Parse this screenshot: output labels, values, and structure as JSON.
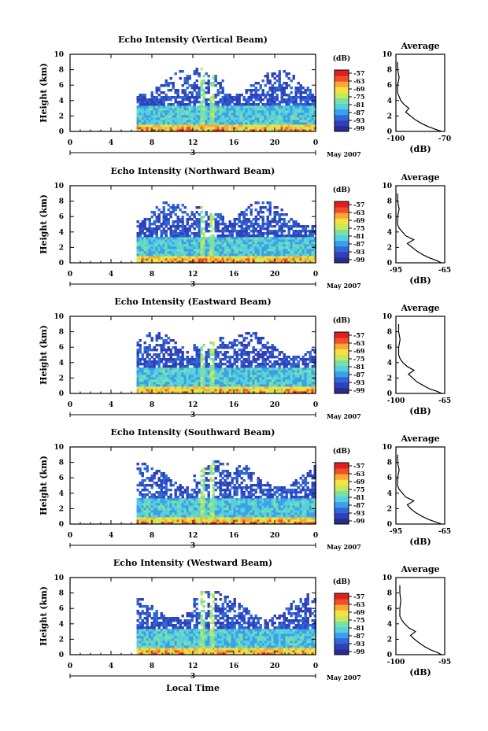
{
  "colors": {
    "scale": [
      "#2b2a8e",
      "#3040b8",
      "#2f68d8",
      "#3aa0e8",
      "#56d0e0",
      "#7be0a8",
      "#c8e858",
      "#f8e040",
      "#f8a838",
      "#f05028",
      "#e02020"
    ],
    "profile_line": "#000000"
  },
  "shared": {
    "x_ticks": [
      "0",
      "4",
      "8",
      "12",
      "16",
      "20",
      "0"
    ],
    "x_range": [
      0,
      24
    ],
    "date_marker": "3",
    "date_label": "May 2007",
    "y_ticks": [
      "0",
      "2",
      "4",
      "6",
      "8",
      "10"
    ],
    "y_label": "Height (km)",
    "y_range": [
      0,
      10
    ],
    "colorbar_unit": "(dB)",
    "colorbar_ticks": [
      "-57",
      "-63",
      "-69",
      "-75",
      "-81",
      "-87",
      "-93",
      "-99"
    ],
    "avg_title": "Average",
    "avg_xlabel": "(dB)",
    "x_label": "Local Time"
  },
  "chart_data": [
    {
      "type": "heatmap",
      "title": "Echo Intensity (Vertical Beam)",
      "xlabel": "",
      "ylabel": "Height (km)",
      "xlim": [
        0,
        24
      ],
      "ylim": [
        0,
        10
      ],
      "data_start_hour": 6.5,
      "colorbar_range": [
        -99,
        -57
      ],
      "average_profile": {
        "xlim": [
          -100,
          -70
        ],
        "xticks": [
          "-100",
          "-70"
        ],
        "height": [
          0,
          0.3,
          0.6,
          1.0,
          1.5,
          2.0,
          2.5,
          3.0,
          3.5,
          4.0,
          4.5,
          5,
          6,
          7,
          8,
          9
        ],
        "value": [
          -72,
          -76,
          -80,
          -84,
          -88,
          -91,
          -94,
          -92,
          -95,
          -97,
          -98,
          -99,
          -99,
          -98,
          -99,
          -99
        ]
      }
    },
    {
      "type": "heatmap",
      "title": "Echo Intensity (Northward Beam)",
      "xlabel": "",
      "ylabel": "Height (km)",
      "xlim": [
        0,
        24
      ],
      "ylim": [
        0,
        10
      ],
      "data_start_hour": 6.5,
      "colorbar_range": [
        -99,
        -57
      ],
      "average_profile": {
        "xlim": [
          -95,
          -65
        ],
        "xticks": [
          "-95",
          "-65"
        ],
        "height": [
          0,
          0.3,
          0.6,
          1.0,
          1.5,
          2.0,
          2.5,
          3.0,
          3.5,
          4.0,
          4.5,
          5,
          6,
          7,
          8,
          9
        ],
        "value": [
          -67,
          -70,
          -74,
          -78,
          -82,
          -85,
          -88,
          -84,
          -89,
          -91,
          -93,
          -94,
          -94,
          -93,
          -94,
          -94
        ]
      }
    },
    {
      "type": "heatmap",
      "title": "Echo Intensity (Eastward Beam)",
      "xlabel": "",
      "ylabel": "Height (km)",
      "xlim": [
        0,
        24
      ],
      "ylim": [
        0,
        10
      ],
      "data_start_hour": 6.5,
      "colorbar_range": [
        -99,
        -57
      ],
      "average_profile": {
        "xlim": [
          -100,
          -65
        ],
        "xticks": [
          "-100",
          "-65"
        ],
        "height": [
          0,
          0.3,
          0.6,
          1.0,
          1.5,
          2.0,
          2.5,
          3.0,
          3.5,
          4.0,
          4.5,
          5,
          6,
          7,
          8,
          9
        ],
        "value": [
          -67,
          -71,
          -76,
          -80,
          -85,
          -88,
          -91,
          -87,
          -92,
          -95,
          -97,
          -98,
          -98,
          -97,
          -98,
          -98
        ]
      }
    },
    {
      "type": "heatmap",
      "title": "Echo Intensity (Southward Beam)",
      "xlabel": "",
      "ylabel": "Height (km)",
      "xlim": [
        0,
        24
      ],
      "ylim": [
        0,
        10
      ],
      "data_start_hour": 6.5,
      "colorbar_range": [
        -99,
        -57
      ],
      "average_profile": {
        "xlim": [
          -95,
          -65
        ],
        "xticks": [
          "-95",
          "-65"
        ],
        "height": [
          0,
          0.3,
          0.6,
          1.0,
          1.5,
          2.0,
          2.5,
          3.0,
          3.5,
          4.0,
          4.5,
          5,
          6,
          7,
          8,
          9
        ],
        "value": [
          -67,
          -71,
          -75,
          -79,
          -83,
          -86,
          -88,
          -84,
          -89,
          -91,
          -93,
          -94,
          -94,
          -93,
          -94,
          -94
        ]
      }
    },
    {
      "type": "heatmap",
      "title": "Echo Intensity (Westward Beam)",
      "xlabel": "Local Time",
      "ylabel": "Height (km)",
      "xlim": [
        0,
        24
      ],
      "ylim": [
        0,
        10
      ],
      "data_start_hour": 6.5,
      "colorbar_range": [
        -99,
        -57
      ],
      "average_profile": {
        "xlim": [
          -100,
          -95
        ],
        "xticks": [
          "-100",
          "-95"
        ],
        "height": [
          0,
          0.3,
          0.6,
          1.0,
          1.5,
          2.0,
          2.5,
          3.0,
          3.5,
          4.0,
          4.5,
          5,
          6,
          7,
          8,
          9
        ],
        "value": [
          -95.3,
          -95.8,
          -96.4,
          -97.0,
          -97.6,
          -98.1,
          -98.5,
          -98.0,
          -98.7,
          -99.1,
          -99.4,
          -99.6,
          -99.6,
          -99.5,
          -99.6,
          -99.6
        ]
      }
    }
  ]
}
